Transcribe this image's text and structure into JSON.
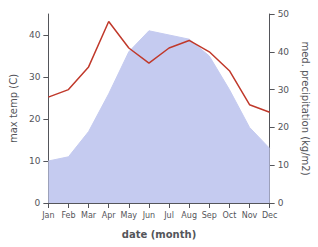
{
  "chart_data": {
    "type": "line",
    "xlabel": "date (month)",
    "ylabel": "max temp (C)",
    "y2label": "med. precipitation (kg/m2)",
    "categories": [
      "Jan",
      "Feb",
      "Mar",
      "Apr",
      "May",
      "Jun",
      "Jul",
      "Aug",
      "Sep",
      "Oct",
      "Nov",
      "Dec"
    ],
    "series": [
      {
        "type": "area",
        "color": "#c5cbf0",
        "values": [
          10,
          11,
          17,
          26,
          36,
          41,
          40,
          39,
          35,
          27,
          18,
          13
        ]
      },
      {
        "type": "line",
        "color": "#c0392b",
        "axis": "y2",
        "values": [
          28,
          30,
          36,
          48,
          41,
          37,
          41,
          43,
          40,
          35,
          26,
          24
        ]
      }
    ],
    "ylim": [
      0,
      45
    ],
    "yticks": [
      0,
      10,
      20,
      30,
      40
    ],
    "y2lim": [
      0,
      50
    ],
    "y2ticks": [
      0,
      10,
      20,
      30,
      40,
      50
    ],
    "grid": false
  }
}
